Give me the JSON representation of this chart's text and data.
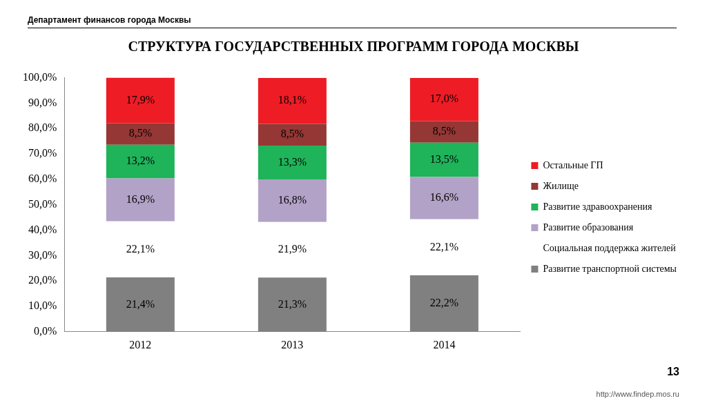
{
  "chart_data": {
    "type": "bar",
    "title": "СТРУКТУРА ГОСУДАРСТВЕННЫХ ПРОГРАММ ГОРОДА МОСКВЫ",
    "subtitle": "Департамент финансов города Москвы",
    "categories": [
      "2012",
      "2013",
      "2014"
    ],
    "stacked": true,
    "legend": "right",
    "ylim": [
      0,
      100
    ],
    "yticks": [
      {
        "value": 0,
        "label": "0,0%"
      },
      {
        "value": 10,
        "label": "10,0%"
      },
      {
        "value": 20,
        "label": "20,0%"
      },
      {
        "value": 30,
        "label": "30,0%"
      },
      {
        "value": 40,
        "label": "40,0%"
      },
      {
        "value": 50,
        "label": "50,0%"
      },
      {
        "value": 60,
        "label": "60,0%"
      },
      {
        "value": 70,
        "label": "70,0%"
      },
      {
        "value": 80,
        "label": "80,0%"
      },
      {
        "value": 90,
        "label": "90,0%"
      },
      {
        "value": 100,
        "label": "100,0%"
      }
    ],
    "series": [
      {
        "name": "Развитие транспортной системы",
        "color": "#808080",
        "values": [
          21.4,
          21.3,
          22.2
        ],
        "value_labels": [
          "21,4%",
          "21,3%",
          "22,2%"
        ]
      },
      {
        "name": "Социальная поддержка жителей",
        "color": "#ffffff",
        "values": [
          22.1,
          21.9,
          22.1
        ],
        "value_labels": [
          "22,1%",
          "21,9%",
          "22,1%"
        ]
      },
      {
        "name": "Развитие образования",
        "color": "#b3a2c7",
        "values": [
          16.9,
          16.8,
          16.6
        ],
        "value_labels": [
          "16,9%",
          "16,8%",
          "16,6%"
        ]
      },
      {
        "name": "Развитие здравоохранения",
        "color": "#1fb35a",
        "values": [
          13.2,
          13.3,
          13.5
        ],
        "value_labels": [
          "13,2%",
          "13,3%",
          "13,5%"
        ]
      },
      {
        "name": "Жилище",
        "color": "#953735",
        "values": [
          8.5,
          8.5,
          8.5
        ],
        "value_labels": [
          "8,5%",
          "8,5%",
          "8,5%"
        ]
      },
      {
        "name": "Остальные ГП",
        "color": "#ee1c25",
        "values": [
          17.9,
          18.1,
          17.0
        ],
        "value_labels": [
          "17,9%",
          "18,1%",
          "17,0%"
        ]
      }
    ],
    "annotations": [
      "13",
      "http://www.findep.mos.ru"
    ]
  }
}
